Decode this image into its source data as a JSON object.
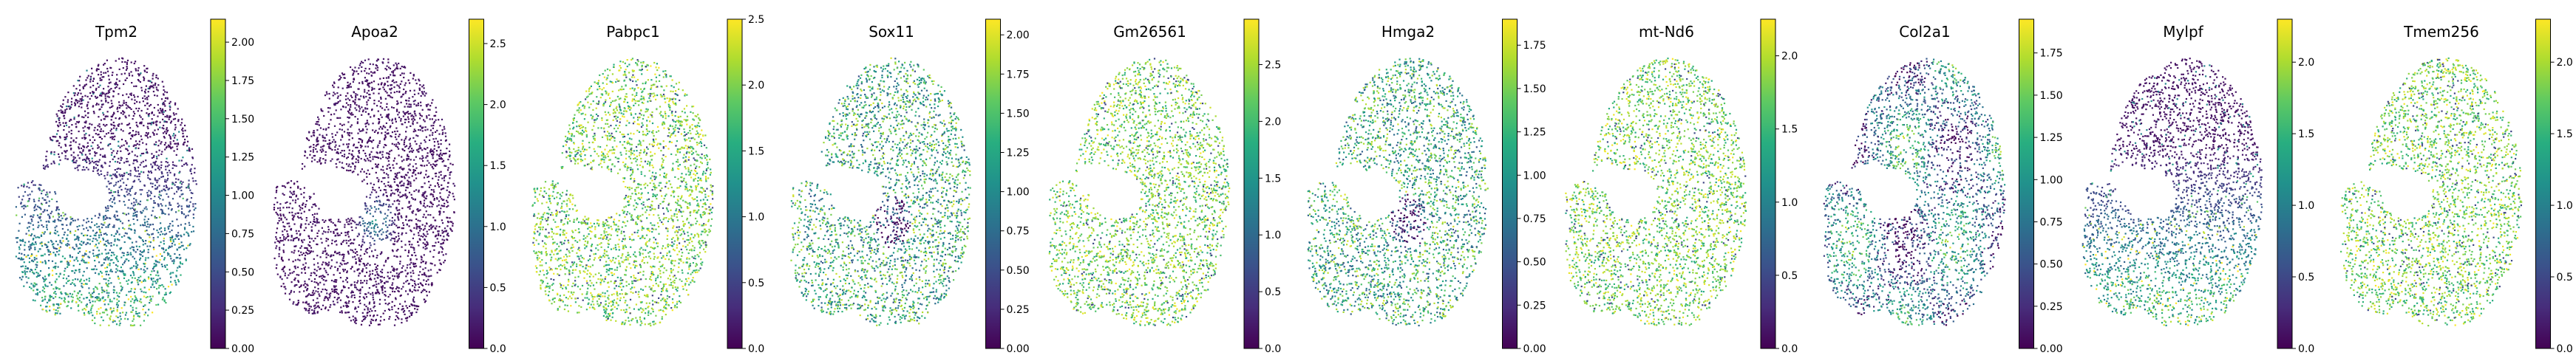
{
  "chart_data": [
    {
      "type": "scatter",
      "title": "Tpm2",
      "colormap": "viridis",
      "colorbar_range": [
        0,
        2.15
      ],
      "colorbar_ticks": [
        "0.00",
        "0.25",
        "0.50",
        "0.75",
        "1.00",
        "1.25",
        "1.50",
        "1.75",
        "2.00"
      ],
      "expression_pattern": "low-dorsal-high-ventral"
    },
    {
      "type": "scatter",
      "title": "Apoa2",
      "colormap": "viridis",
      "colorbar_range": [
        0,
        2.7
      ],
      "colorbar_ticks": [
        "0.0",
        "0.5",
        "1.0",
        "1.5",
        "2.0",
        "2.5"
      ],
      "expression_pattern": "low-with-central-patch"
    },
    {
      "type": "scatter",
      "title": "Pabpc1",
      "colormap": "viridis",
      "colorbar_range": [
        0,
        2.5
      ],
      "colorbar_ticks": [
        "0.0",
        "0.5",
        "1.0",
        "1.5",
        "2.0",
        "2.5"
      ],
      "expression_pattern": "high-uniform"
    },
    {
      "type": "scatter",
      "title": "Sox11",
      "colormap": "viridis",
      "colorbar_range": [
        0,
        2.1
      ],
      "colorbar_ticks": [
        "0.00",
        "0.25",
        "0.50",
        "0.75",
        "1.00",
        "1.25",
        "1.50",
        "1.75",
        "2.00"
      ],
      "expression_pattern": "mixed"
    },
    {
      "type": "scatter",
      "title": "Gm26561",
      "colormap": "viridis",
      "colorbar_range": [
        0,
        2.9
      ],
      "colorbar_ticks": [
        "0.0",
        "0.5",
        "1.0",
        "1.5",
        "2.0",
        "2.5"
      ],
      "expression_pattern": "high-uniform"
    },
    {
      "type": "scatter",
      "title": "Hmga2",
      "colormap": "viridis",
      "colorbar_range": [
        0,
        1.9
      ],
      "colorbar_ticks": [
        "0.00",
        "0.25",
        "0.50",
        "0.75",
        "1.00",
        "1.25",
        "1.50",
        "1.75"
      ],
      "expression_pattern": "mixed"
    },
    {
      "type": "scatter",
      "title": "mt-Nd6",
      "colormap": "viridis",
      "colorbar_range": [
        0,
        2.25
      ],
      "colorbar_ticks": [
        "0.0",
        "0.5",
        "1.0",
        "1.5",
        "2.0"
      ],
      "expression_pattern": "high-uniform"
    },
    {
      "type": "scatter",
      "title": "Col2a1",
      "colormap": "viridis",
      "colorbar_range": [
        0,
        1.95
      ],
      "colorbar_ticks": [
        "0.00",
        "0.25",
        "0.50",
        "0.75",
        "1.00",
        "1.25",
        "1.50",
        "1.75"
      ],
      "expression_pattern": "patchy"
    },
    {
      "type": "scatter",
      "title": "Mylpf",
      "colormap": "viridis",
      "colorbar_range": [
        0,
        2.3
      ],
      "colorbar_ticks": [
        "0.0",
        "0.5",
        "1.0",
        "1.5",
        "2.0"
      ],
      "expression_pattern": "low-dorsal-high-ventral"
    },
    {
      "type": "scatter",
      "title": "Tmem256",
      "colormap": "viridis",
      "colorbar_range": [
        0,
        2.3
      ],
      "colorbar_ticks": [
        "0.0",
        "0.5",
        "1.0",
        "1.5",
        "2.0"
      ],
      "expression_pattern": "high-uniform"
    }
  ]
}
